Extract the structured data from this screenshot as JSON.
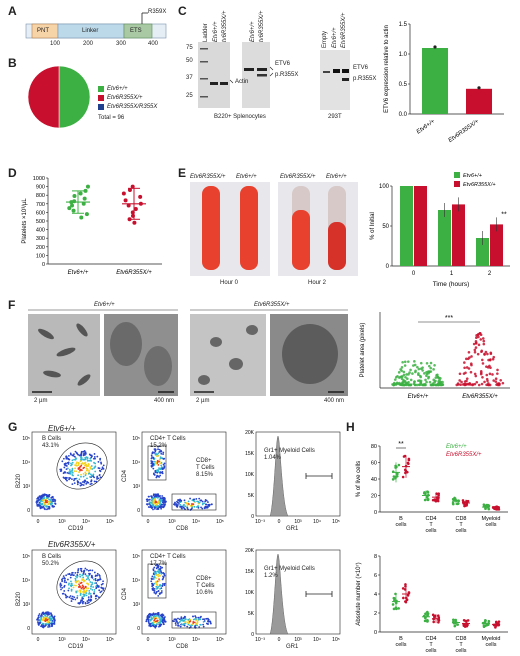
{
  "panels": {
    "A": {
      "letter": "A",
      "domains": [
        "PNT",
        "Linker",
        "ETS"
      ],
      "ticks": [
        "100",
        "200",
        "300",
        "400"
      ],
      "mutation": "R359X",
      "colors": {
        "pnt": "#f7d3a8",
        "linker": "#bcd9ea",
        "ets": "#a9c8a4"
      }
    },
    "B": {
      "letter": "B",
      "legend": [
        "Etv6+/+",
        "Etv6R355X/+",
        "Etv6R355X/R355X"
      ],
      "total": "Total = 96",
      "chart_data": {
        "type": "pie",
        "categories": [
          "Etv6+/+",
          "Etv6R355X/+",
          "Etv6R355X/R355X"
        ],
        "values": [
          48,
          48,
          0
        ],
        "colors": [
          "#3cb043",
          "#c8102e",
          "#1f3f8f"
        ]
      }
    },
    "C": {
      "letter": "C",
      "ladder": "Ladder",
      "lane_labels": [
        "Etv6+/+",
        "Etv6R355X/+",
        "Etv6+/+",
        "Etv6R355X/+"
      ],
      "mw": [
        "75",
        "50",
        "37",
        "25"
      ],
      "bands_left": [
        "Actin"
      ],
      "bands_right": [
        "ETV6",
        "p.R355X"
      ],
      "caption_left": "B220+ Splenocytes",
      "lanes_293": [
        "Empty",
        "Etv6+/+",
        "Etv6R355X/+"
      ],
      "bands_293": [
        "ETV6",
        "p.R355X"
      ],
      "caption_293": "293T",
      "chart_data": {
        "type": "bar",
        "categories": [
          "Etv6+/+",
          "Etv6R355X/+"
        ],
        "values": [
          1.1,
          0.42
        ],
        "ylabel": "ETV6 expression relative to actin",
        "ylim": [
          0,
          1.5
        ],
        "yticks": [
          "0.0",
          "0.5",
          "1.0",
          "1.5"
        ],
        "colors": [
          "#3cb043",
          "#c8102e"
        ]
      }
    },
    "D": {
      "letter": "D",
      "chart_data": {
        "type": "scatter",
        "categories": [
          "Etv6+/+",
          "Etv6R355X/+"
        ],
        "ylabel": "Platelets ×10³/µL",
        "ylim": [
          0,
          1000
        ],
        "yticks": [
          "0",
          "100",
          "200",
          "300",
          "400",
          "500",
          "600",
          "700",
          "800",
          "900",
          "1000"
        ],
        "series": [
          {
            "values": [
              540,
              580,
              620,
              650,
              680,
              700,
              720,
              730,
              760,
              790,
              820,
              850,
              900
            ],
            "mean": 720,
            "sd": 130
          },
          {
            "values": [
              480,
              520,
              560,
              600,
              640,
              680,
              700,
              740,
              780,
              820,
              860,
              900
            ],
            "mean": 700,
            "sd": 180
          }
        ],
        "colors": [
          "#3cb043",
          "#c8102e"
        ]
      }
    },
    "E": {
      "letter": "E",
      "tube_labels": [
        "Etv6R355X/+",
        "Etv6+/+",
        "Etv6R355X/+",
        "Etv6+/+"
      ],
      "captions": [
        "Hour 0",
        "Hour 2"
      ],
      "chart_data": {
        "type": "bar",
        "categories": [
          "0",
          "1",
          "2"
        ],
        "series": [
          {
            "name": "Etv6+/+",
            "values": [
              100,
              70,
              35
            ]
          },
          {
            "name": "Etv6R355X/+",
            "values": [
              100,
              77,
              52
            ]
          }
        ],
        "xlabel": "Time (hours)",
        "ylabel": "% of Initial",
        "ylim": [
          0,
          100
        ],
        "yticks": [
          "0",
          "50",
          "100"
        ],
        "annotation": "**",
        "colors": [
          "#3cb043",
          "#c8102e"
        ]
      }
    },
    "F": {
      "letter": "F",
      "group_labels": [
        "Etv6+/+",
        "Etv6R355X/+"
      ],
      "scales": [
        "2 µm",
        "400 nm",
        "2 µm",
        "400 nm"
      ],
      "chart_data": {
        "type": "scatter",
        "categories": [
          "Etv6+/+",
          "Etv6R355X/+"
        ],
        "ylabel": "Platelet area (pixels)",
        "annotation": "***",
        "colors": [
          "#3cb043",
          "#c8102e"
        ]
      }
    },
    "G": {
      "letter": "G",
      "row1_title": "Etv6+/+",
      "row2_title": "Etv6R355X/+",
      "axes": {
        "b220": "B220",
        "cd19": "CD19",
        "cd4": "CD4",
        "cd8": "CD8",
        "gr1": "GR1"
      },
      "row1": {
        "b": [
          "B Cells",
          "43.1%"
        ],
        "cd4": [
          "CD4+ T Cells",
          "15.2%"
        ],
        "cd8": [
          "CD8+",
          "T Cells",
          "8.15%"
        ],
        "gr1": [
          "Gr1+ Myeloid Cells",
          "1.04%"
        ]
      },
      "row2": {
        "b": [
          "B Cells",
          "50.2%"
        ],
        "cd4": [
          "CD4+ T Cells",
          "17.7%"
        ],
        "cd8": [
          "CD8+",
          "T Cells",
          "10.6%"
        ],
        "gr1": [
          "Gr1+ Myeloid Cells",
          "1.2%"
        ]
      },
      "log_ticks": [
        "0",
        "10³",
        "10⁴",
        "10⁵"
      ],
      "count_ticks": [
        "0",
        "5K",
        "10K",
        "15K",
        "20K"
      ]
    },
    "H": {
      "letter": "H",
      "legend": [
        "Etv6+/+",
        "Etv6R355X/+"
      ],
      "annotation": "**",
      "chart_data": [
        {
          "type": "scatter",
          "categories": [
            "B cells",
            "CD4 T cells",
            "CD8 T cells",
            "Myeloid cells"
          ],
          "ylabel": "% of live cells",
          "ylim": [
            0,
            80
          ],
          "yticks": [
            "0",
            "20",
            "40",
            "60",
            "80"
          ],
          "series": [
            {
              "name": "Etv6+/+",
              "values": [
                48,
                20,
                13,
                6
              ]
            },
            {
              "name": "Etv6R355X/+",
              "values": [
                55,
                18,
                11,
                5
              ]
            }
          ]
        },
        {
          "type": "scatter",
          "categories": [
            "B cells",
            "CD4 T cells",
            "CD8 T cells",
            "Myeloid cells"
          ],
          "ylabel": "Absolute number (×10⁷)",
          "ylim": [
            0,
            8
          ],
          "yticks": [
            "0",
            "2",
            "4",
            "6",
            "8"
          ],
          "series": [
            {
              "name": "Etv6+/+",
              "values": [
                3.2,
                1.6,
                1.0,
                0.9
              ]
            },
            {
              "name": "Etv6R355X/+",
              "values": [
                4.0,
                1.4,
                0.9,
                0.8
              ]
            }
          ]
        }
      ]
    }
  }
}
